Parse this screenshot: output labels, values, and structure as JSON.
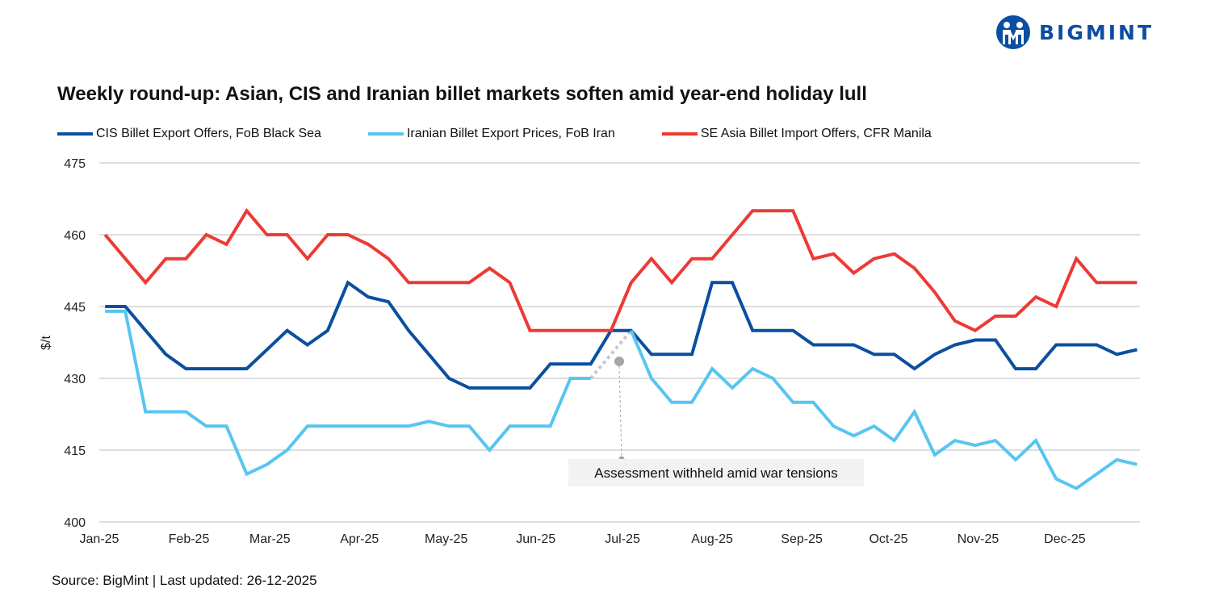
{
  "logo": {
    "text": "BIGMINT",
    "color": "#0b4ea2"
  },
  "source": "Source: BigMint | Last updated: 26-12-2025",
  "chart_data": {
    "type": "line",
    "title": "Weekly round-up: Asian, CIS and Iranian billet markets soften amid year-end holiday lull",
    "xlabel": "",
    "ylabel": "$/t",
    "ylim": [
      400,
      475
    ],
    "yticks": [
      400,
      415,
      430,
      445,
      460,
      475
    ],
    "xlim": [
      "2025-01-01",
      "2025-12-27"
    ],
    "xticks": [
      {
        "date": "2025-01-01",
        "label": "Jan-25"
      },
      {
        "date": "2025-02-01",
        "label": "Feb-25"
      },
      {
        "date": "2025-03-01",
        "label": "Mar-25"
      },
      {
        "date": "2025-04-01",
        "label": "Apr-25"
      },
      {
        "date": "2025-05-01",
        "label": "May-25"
      },
      {
        "date": "2025-06-01",
        "label": "Jun-25"
      },
      {
        "date": "2025-07-01",
        "label": "Jul-25"
      },
      {
        "date": "2025-08-01",
        "label": "Aug-25"
      },
      {
        "date": "2025-09-01",
        "label": "Sep-25"
      },
      {
        "date": "2025-10-01",
        "label": "Oct-25"
      },
      {
        "date": "2025-11-01",
        "label": "Nov-25"
      },
      {
        "date": "2025-12-01",
        "label": "Dec-25"
      }
    ],
    "grid": true,
    "legend": "top",
    "x": [
      "2025-01-03",
      "2025-01-10",
      "2025-01-17",
      "2025-01-24",
      "2025-01-31",
      "2025-02-07",
      "2025-02-14",
      "2025-02-21",
      "2025-02-28",
      "2025-03-07",
      "2025-03-14",
      "2025-03-21",
      "2025-03-28",
      "2025-04-04",
      "2025-04-11",
      "2025-04-18",
      "2025-04-25",
      "2025-05-02",
      "2025-05-09",
      "2025-05-16",
      "2025-05-23",
      "2025-05-30",
      "2025-06-06",
      "2025-06-13",
      "2025-06-20",
      "2025-06-27",
      "2025-07-04",
      "2025-07-11",
      "2025-07-18",
      "2025-07-25",
      "2025-08-01",
      "2025-08-08",
      "2025-08-15",
      "2025-08-22",
      "2025-08-29",
      "2025-09-05",
      "2025-09-12",
      "2025-09-19",
      "2025-09-26",
      "2025-10-03",
      "2025-10-10",
      "2025-10-17",
      "2025-10-24",
      "2025-10-31",
      "2025-11-07",
      "2025-11-14",
      "2025-11-21",
      "2025-11-28",
      "2025-12-05",
      "2025-12-12",
      "2025-12-19",
      "2025-12-26"
    ],
    "series": [
      {
        "name": "CIS Billet Export Offers, FoB Black Sea",
        "color": "#0a4fa0",
        "values": [
          445,
          445,
          440,
          435,
          432,
          432,
          432,
          432,
          436,
          440,
          437,
          440,
          450,
          447,
          446,
          440,
          435,
          430,
          428,
          428,
          428,
          428,
          433,
          433,
          433,
          440,
          440,
          435,
          435,
          435,
          450,
          450,
          440,
          440,
          440,
          437,
          437,
          437,
          435,
          435,
          432,
          435,
          437,
          438,
          438,
          432,
          432,
          437,
          437,
          437,
          435,
          436
        ]
      },
      {
        "name": "Iranian Billet Export Prices, FoB Iran",
        "color": "#58c5f0",
        "values": [
          444,
          444,
          423,
          423,
          423,
          420,
          420,
          410,
          412,
          415,
          420,
          420,
          420,
          420,
          420,
          420,
          421,
          420,
          420,
          415,
          420,
          420,
          420,
          430,
          430,
          null,
          440,
          430,
          425,
          425,
          432,
          428,
          432,
          430,
          425,
          425,
          420,
          418,
          420,
          417,
          423,
          414,
          417,
          416,
          417,
          413,
          417,
          409,
          407,
          410,
          413,
          412
        ]
      },
      {
        "name": "SE Asia Billet Import Offers, CFR Manila",
        "color": "#ee3a35",
        "values": [
          460,
          455,
          450,
          455,
          455,
          460,
          458,
          465,
          460,
          460,
          455,
          460,
          460,
          458,
          455,
          450,
          450,
          450,
          450,
          453,
          450,
          440,
          440,
          440,
          440,
          440,
          450,
          455,
          450,
          455,
          455,
          460,
          465,
          465,
          465,
          455,
          456,
          452,
          455,
          456,
          453,
          448,
          442,
          440,
          443,
          443,
          447,
          445,
          455,
          450,
          450,
          450
        ]
      }
    ],
    "annotations": [
      {
        "text": "Assessment withheld amid  war tensions",
        "date": "2025-06-27",
        "series": "Iranian Billet Export Prices, FoB Iran"
      }
    ]
  }
}
